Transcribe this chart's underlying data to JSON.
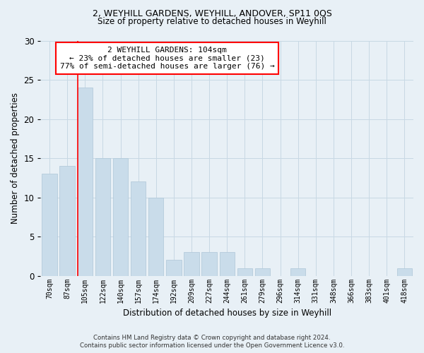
{
  "title1": "2, WEYHILL GARDENS, WEYHILL, ANDOVER, SP11 0QS",
  "title2": "Size of property relative to detached houses in Weyhill",
  "xlabel": "Distribution of detached houses by size in Weyhill",
  "ylabel": "Number of detached properties",
  "categories": [
    "70sqm",
    "87sqm",
    "105sqm",
    "122sqm",
    "140sqm",
    "157sqm",
    "174sqm",
    "192sqm",
    "209sqm",
    "227sqm",
    "244sqm",
    "261sqm",
    "279sqm",
    "296sqm",
    "314sqm",
    "331sqm",
    "348sqm",
    "366sqm",
    "383sqm",
    "401sqm",
    "418sqm"
  ],
  "values": [
    13,
    14,
    24,
    15,
    15,
    12,
    10,
    2,
    3,
    3,
    3,
    1,
    1,
    0,
    1,
    0,
    0,
    0,
    0,
    0,
    1
  ],
  "bar_color": "#c9dcea",
  "bar_edge_color": "#aec6d8",
  "annotation_text": "2 WEYHILL GARDENS: 104sqm\n← 23% of detached houses are smaller (23)\n77% of semi-detached houses are larger (76) →",
  "annotation_box_color": "white",
  "annotation_box_edge_color": "red",
  "vline_color": "red",
  "ylim": [
    0,
    30
  ],
  "yticks": [
    0,
    5,
    10,
    15,
    20,
    25,
    30
  ],
  "grid_color": "#c8d8e4",
  "bg_color": "#e8f0f6",
  "title_fontsize": 9,
  "subtitle_fontsize": 8.5,
  "footer": "Contains HM Land Registry data © Crown copyright and database right 2024.\nContains public sector information licensed under the Open Government Licence v3.0."
}
